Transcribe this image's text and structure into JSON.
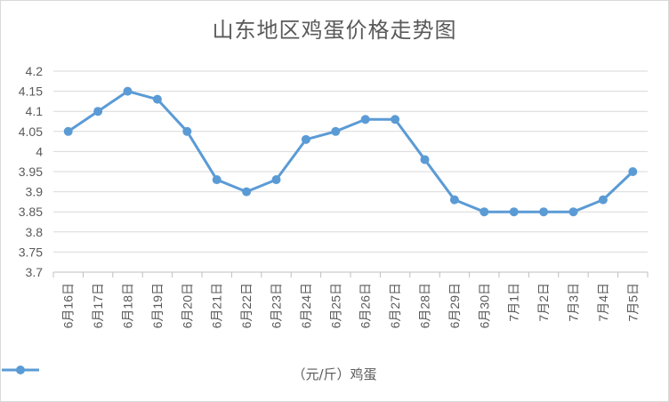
{
  "chart_data": {
    "type": "line",
    "title": "山东地区鸡蛋价格走势图",
    "categories": [
      "6月16日",
      "6月17日",
      "6月18日",
      "6月19日",
      "6月20日",
      "6月21日",
      "6月22日",
      "6月23日",
      "6月24日",
      "6月25日",
      "6月26日",
      "6月27日",
      "6月28日",
      "6月29日",
      "6月30日",
      "7月1日",
      "7月2日",
      "7月3日",
      "7月4日",
      "7月5日"
    ],
    "series": [
      {
        "name": "（元/斤）鸡蛋",
        "color": "#5b9bd5",
        "values": [
          4.05,
          4.1,
          4.15,
          4.13,
          4.05,
          3.93,
          3.9,
          3.93,
          4.03,
          4.05,
          4.08,
          4.08,
          3.98,
          3.88,
          3.85,
          3.85,
          3.85,
          3.85,
          3.88,
          3.95
        ]
      }
    ],
    "ylim": [
      3.7,
      4.2
    ],
    "yticks": [
      "3.7",
      "3.75",
      "3.8",
      "3.85",
      "3.9",
      "3.95",
      "4",
      "4.05",
      "4.1",
      "4.15",
      "4.2"
    ],
    "grid": true,
    "legend": "bottom",
    "xlabel": "",
    "ylabel": ""
  }
}
